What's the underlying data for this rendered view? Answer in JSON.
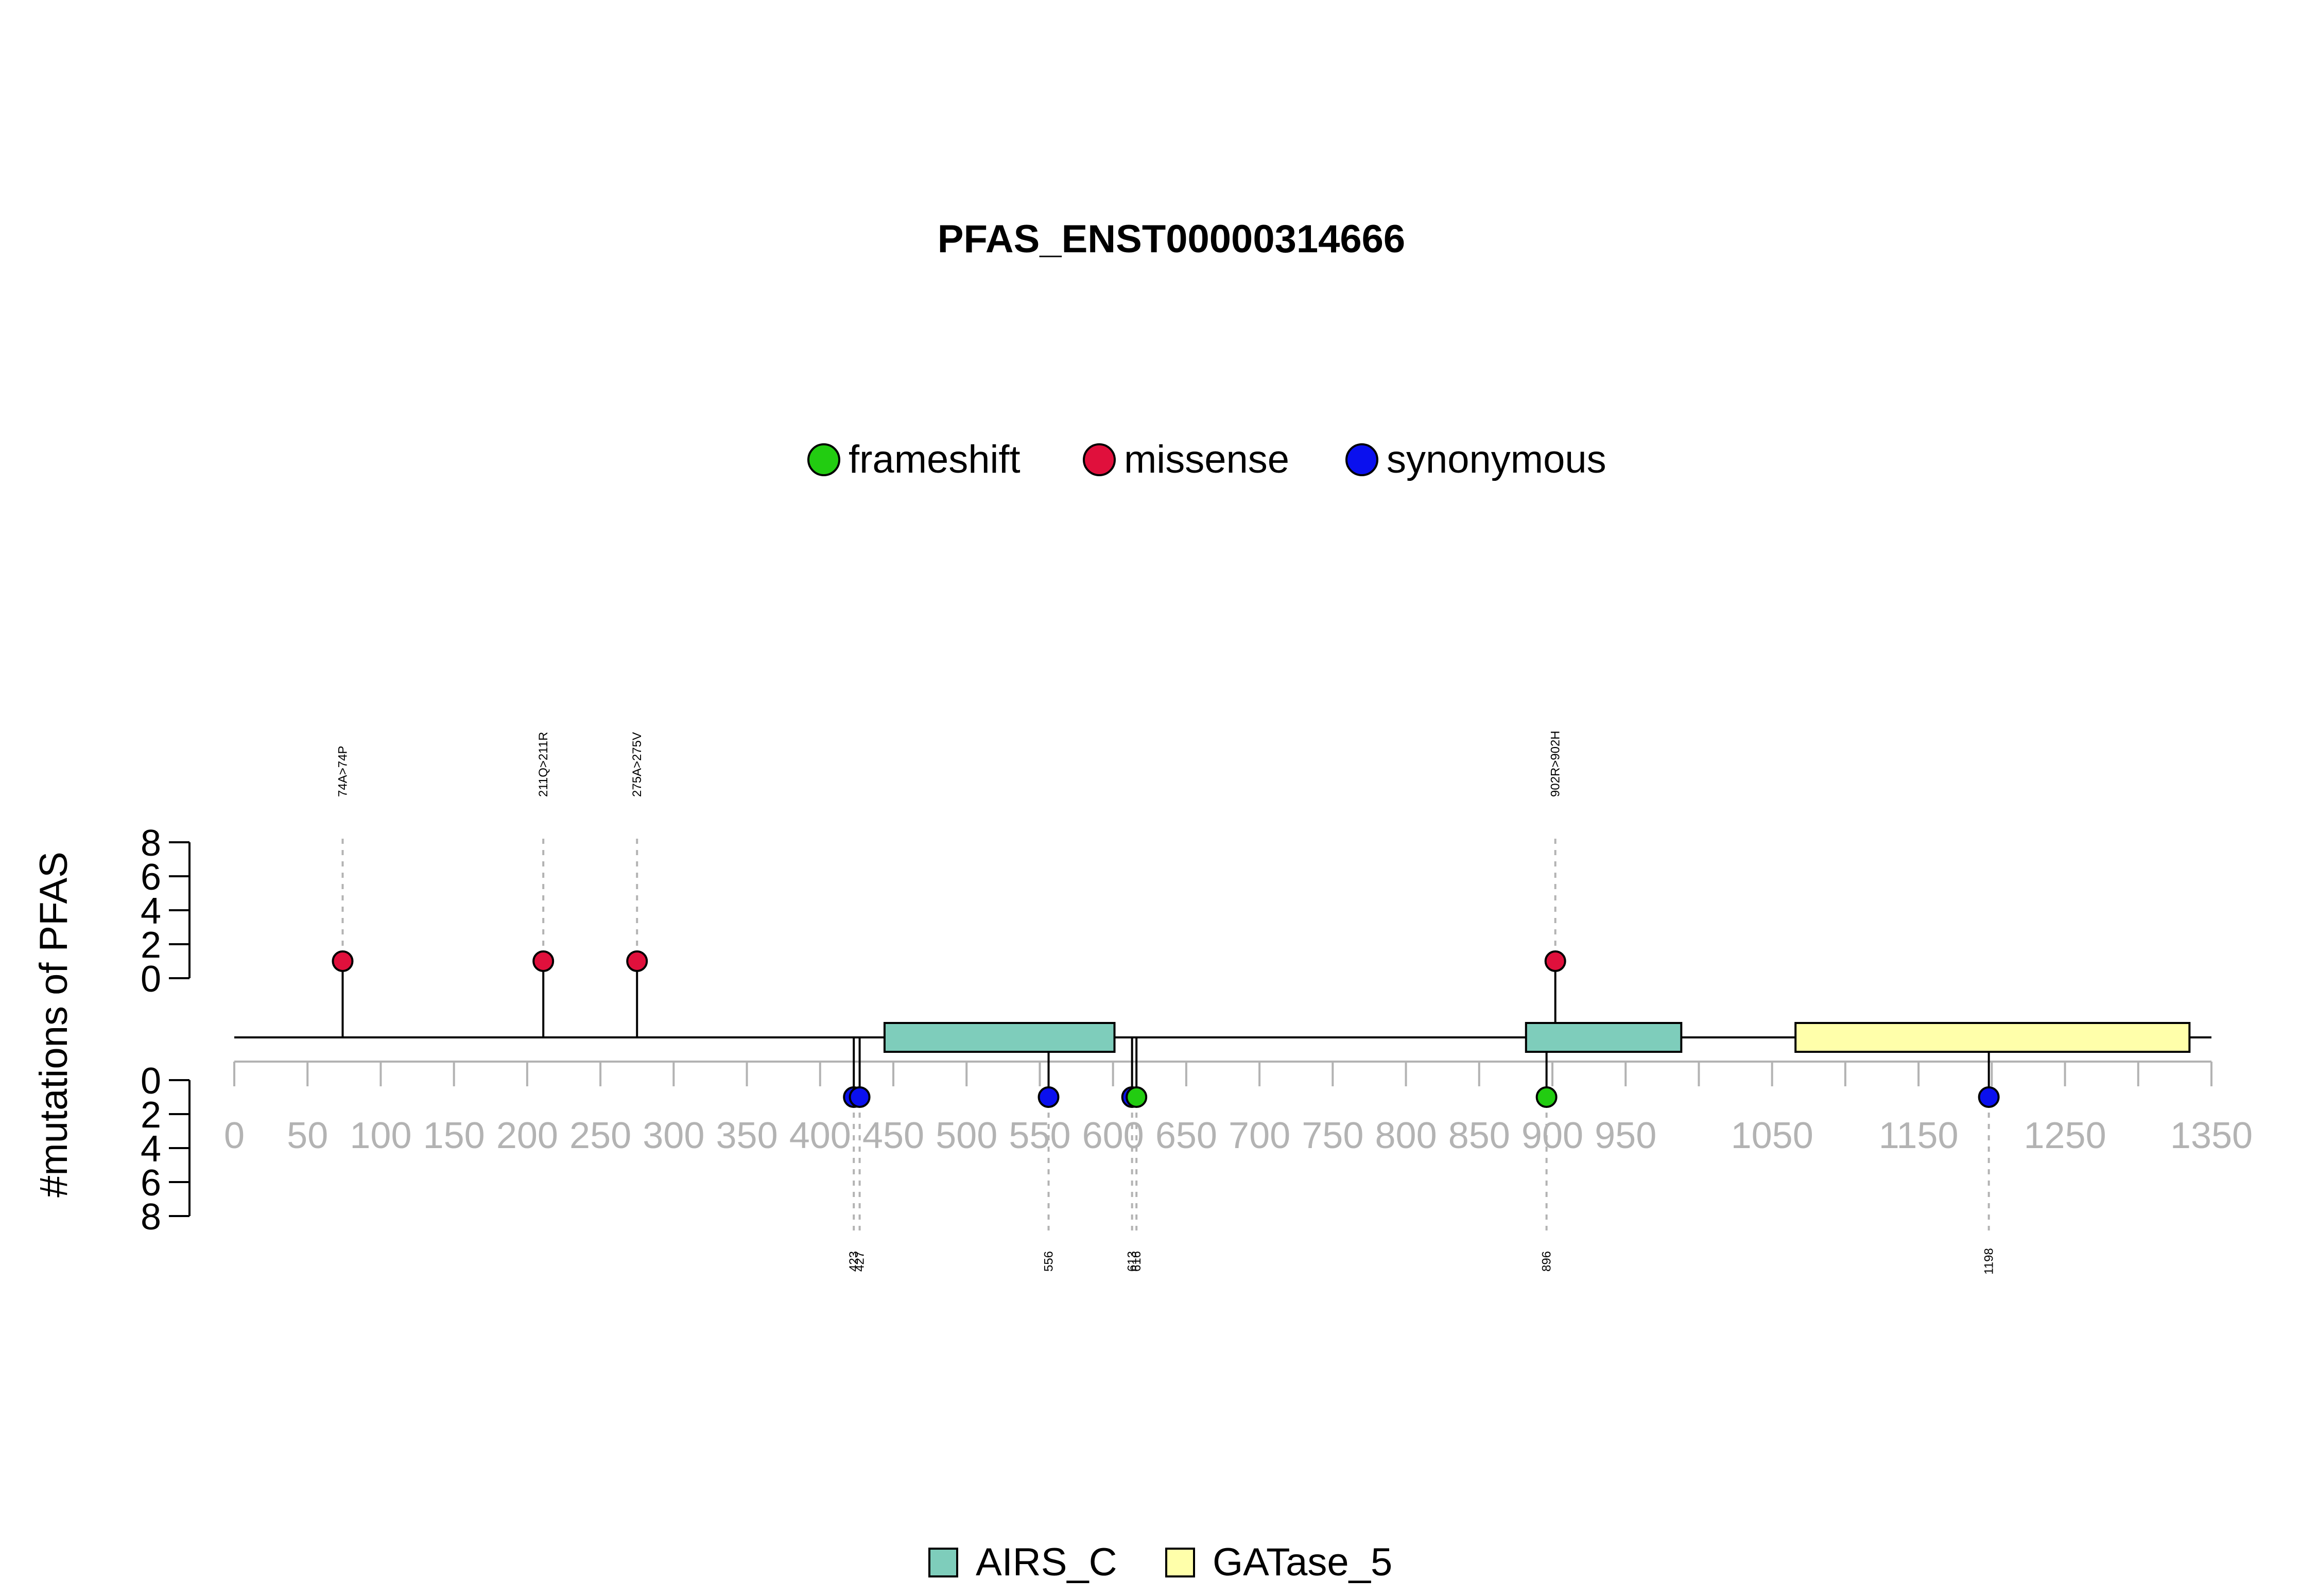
{
  "chart_data": {
    "type": "lollipop",
    "title": "PFAS_ENST00000314666",
    "ylabel": "#mutations of PFAS",
    "protein_length": 1338,
    "xlim": [
      0,
      1350
    ],
    "x_ticks": [
      0,
      50,
      100,
      150,
      200,
      250,
      300,
      350,
      400,
      450,
      500,
      550,
      600,
      650,
      700,
      750,
      800,
      850,
      900,
      950,
      1050,
      1150,
      1250,
      1350
    ],
    "x_minor_ticks": [
      1000,
      1100,
      1200,
      1300
    ],
    "y_ticks": [
      0,
      2,
      4,
      6,
      8
    ],
    "ylim": [
      0,
      8
    ],
    "mutation_legend": [
      {
        "name": "frameshift",
        "color": "#22cc11"
      },
      {
        "name": "missense",
        "color": "#e0103c"
      },
      {
        "name": "synonymous",
        "color": "#0a10ee"
      }
    ],
    "domain_legend": [
      {
        "name": "AIRS_C",
        "color": "#7ecdbb"
      },
      {
        "name": "GATase_5",
        "color": "#ffffaa"
      }
    ],
    "domains": [
      {
        "name": "AIRS_C",
        "start": 444,
        "end": 601
      },
      {
        "name": "AIRS_C",
        "start": 882,
        "end": 988
      },
      {
        "name": "GATase_5",
        "start": 1066,
        "end": 1335
      }
    ],
    "mutations_top": [
      {
        "label": "74A>74P",
        "position": 74,
        "count": 1,
        "type": "missense"
      },
      {
        "label": "211Q>211R",
        "position": 211,
        "count": 1,
        "type": "missense"
      },
      {
        "label": "275A>275V",
        "position": 275,
        "count": 1,
        "type": "missense"
      },
      {
        "label": "902R>902H",
        "position": 902,
        "count": 1,
        "type": "missense"
      }
    ],
    "mutations_bottom": [
      {
        "label": "423",
        "position": 423,
        "stem_position": 423,
        "count": 1,
        "type": "synonymous"
      },
      {
        "label": "427",
        "position": 427,
        "stem_position": 427,
        "count": 1,
        "type": "synonymous"
      },
      {
        "label": "556",
        "position": 556,
        "stem_position": 556,
        "count": 1,
        "type": "synonymous"
      },
      {
        "label": "613",
        "position": 613,
        "stem_position": 613,
        "count": 1,
        "type": "synonymous"
      },
      {
        "label": "616",
        "position": 616,
        "stem_position": 616,
        "count": 1,
        "type": "frameshift"
      },
      {
        "label": "896",
        "position": 896,
        "stem_position": 896,
        "count": 1,
        "type": "frameshift"
      },
      {
        "label": "1198",
        "position": 1198,
        "stem_position": 1198,
        "count": 1,
        "type": "synonymous"
      }
    ]
  }
}
